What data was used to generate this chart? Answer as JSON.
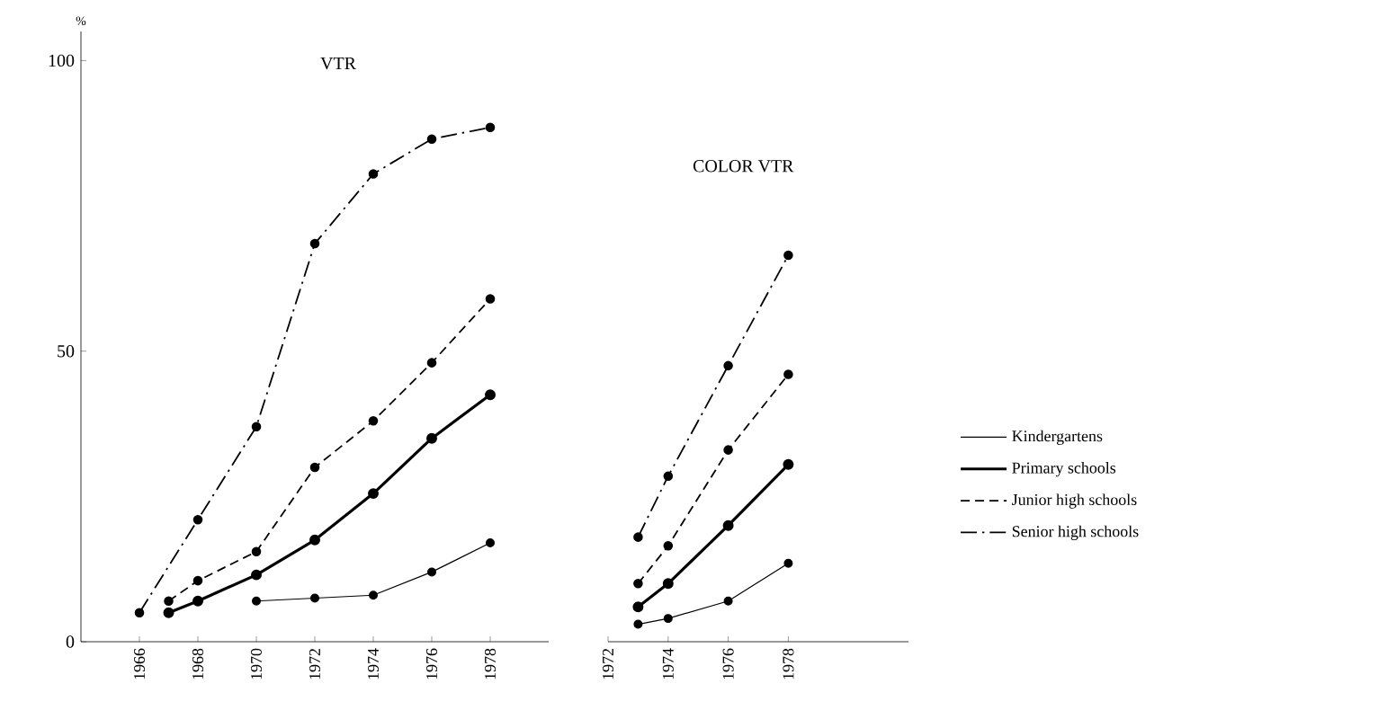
{
  "chart_data": [
    {
      "type": "line",
      "title": "VTR",
      "ylabel": "%",
      "xlim": [
        1964,
        1980
      ],
      "ylim": [
        0,
        105
      ],
      "xticks": [
        1966,
        1968,
        1970,
        1972,
        1974,
        1976,
        1978
      ],
      "yticks": [
        0,
        50,
        100
      ],
      "marker": "circle",
      "grid": false,
      "series": [
        {
          "color": "#000000",
          "line_style": "solid",
          "x": [
            1970,
            1972,
            1974,
            1976,
            1978
          ],
          "values": [
            7,
            7.5,
            8,
            12,
            17
          ]
        },
        {
          "color": "#000000",
          "line_style": "solid",
          "x": [
            1967,
            1968,
            1970,
            1972,
            1974,
            1976,
            1978
          ],
          "values": [
            5,
            7,
            11.5,
            17.5,
            25.5,
            35,
            42.5
          ]
        },
        {
          "color": "#000000",
          "line_style": "dashed",
          "x": [
            1967,
            1968,
            1970,
            1972,
            1974,
            1976,
            1978
          ],
          "values": [
            7,
            10.5,
            15.5,
            30,
            38,
            48,
            59
          ]
        },
        {
          "color": "#000000",
          "line_style": "dashdot",
          "x": [
            1966,
            1968,
            1970,
            1972,
            1974,
            1976,
            1978
          ],
          "values": [
            5,
            21,
            37,
            68.5,
            80.5,
            86.5,
            88.5
          ]
        }
      ]
    },
    {
      "type": "line",
      "title": "COLOR VTR",
      "xlim": [
        1972,
        1982
      ],
      "ylim": [
        0,
        100
      ],
      "xticks": [
        1972,
        1974,
        1976,
        1978
      ],
      "yticks": [
        0,
        50,
        100
      ],
      "tick_labels": "x",
      "marker": "circle",
      "grid": false,
      "legend": "right",
      "series": [
        {
          "name": "Kindergartens",
          "color": "#000000",
          "line_style": "solid",
          "x": [
            1973,
            1974,
            1976,
            1978
          ],
          "values": [
            3,
            4,
            7,
            13.5
          ]
        },
        {
          "name": "Primary schools",
          "color": "#000000",
          "line_style": "solid",
          "x": [
            1973,
            1974,
            1976,
            1978
          ],
          "values": [
            6,
            10,
            20,
            30.5
          ]
        },
        {
          "name": "Junior high schools",
          "color": "#000000",
          "line_style": "dashed",
          "x": [
            1973,
            1974,
            1976,
            1978
          ],
          "values": [
            10,
            16.5,
            33,
            46
          ]
        },
        {
          "name": "Senior high schools",
          "color": "#000000",
          "line_style": "dashdot",
          "x": [
            1973,
            1974,
            1976,
            1978
          ],
          "values": [
            18,
            28.5,
            47.5,
            66.5
          ]
        }
      ]
    }
  ]
}
